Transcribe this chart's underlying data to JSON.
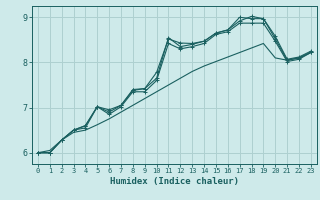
{
  "xlabel": "Humidex (Indice chaleur)",
  "background_color": "#ceeaea",
  "grid_color": "#aed0d0",
  "line_color": "#1a6060",
  "xlim": [
    -0.5,
    23.5
  ],
  "ylim": [
    5.75,
    9.25
  ],
  "yticks": [
    6,
    7,
    8,
    9
  ],
  "xticks": [
    0,
    1,
    2,
    3,
    4,
    5,
    6,
    7,
    8,
    9,
    10,
    11,
    12,
    13,
    14,
    15,
    16,
    17,
    18,
    19,
    20,
    21,
    22,
    23
  ],
  "series": [
    [
      6.0,
      6.0,
      6.28,
      6.5,
      6.6,
      7.02,
      6.95,
      7.05,
      7.4,
      7.42,
      7.78,
      8.52,
      8.43,
      8.42,
      8.47,
      8.65,
      8.72,
      9.0,
      8.97,
      8.97,
      8.58,
      8.07,
      8.12,
      8.25
    ],
    [
      6.0,
      6.0,
      6.28,
      6.5,
      6.6,
      7.02,
      6.9,
      7.05,
      7.38,
      7.42,
      7.65,
      8.55,
      8.35,
      8.4,
      8.47,
      8.65,
      8.72,
      8.92,
      9.02,
      8.97,
      8.52,
      8.05,
      8.1,
      8.22
    ],
    [
      6.0,
      6.0,
      6.28,
      6.5,
      6.55,
      7.02,
      6.85,
      7.02,
      7.35,
      7.35,
      7.6,
      8.42,
      8.3,
      8.35,
      8.42,
      8.62,
      8.68,
      8.87,
      8.87,
      8.87,
      8.47,
      8.02,
      8.07,
      8.22
    ],
    [
      6.0,
      6.05,
      6.28,
      6.45,
      6.5,
      6.62,
      6.75,
      6.9,
      7.05,
      7.2,
      7.35,
      7.5,
      7.65,
      7.8,
      7.92,
      8.02,
      8.12,
      8.22,
      8.32,
      8.42,
      8.1,
      8.05,
      8.1,
      8.22
    ]
  ]
}
